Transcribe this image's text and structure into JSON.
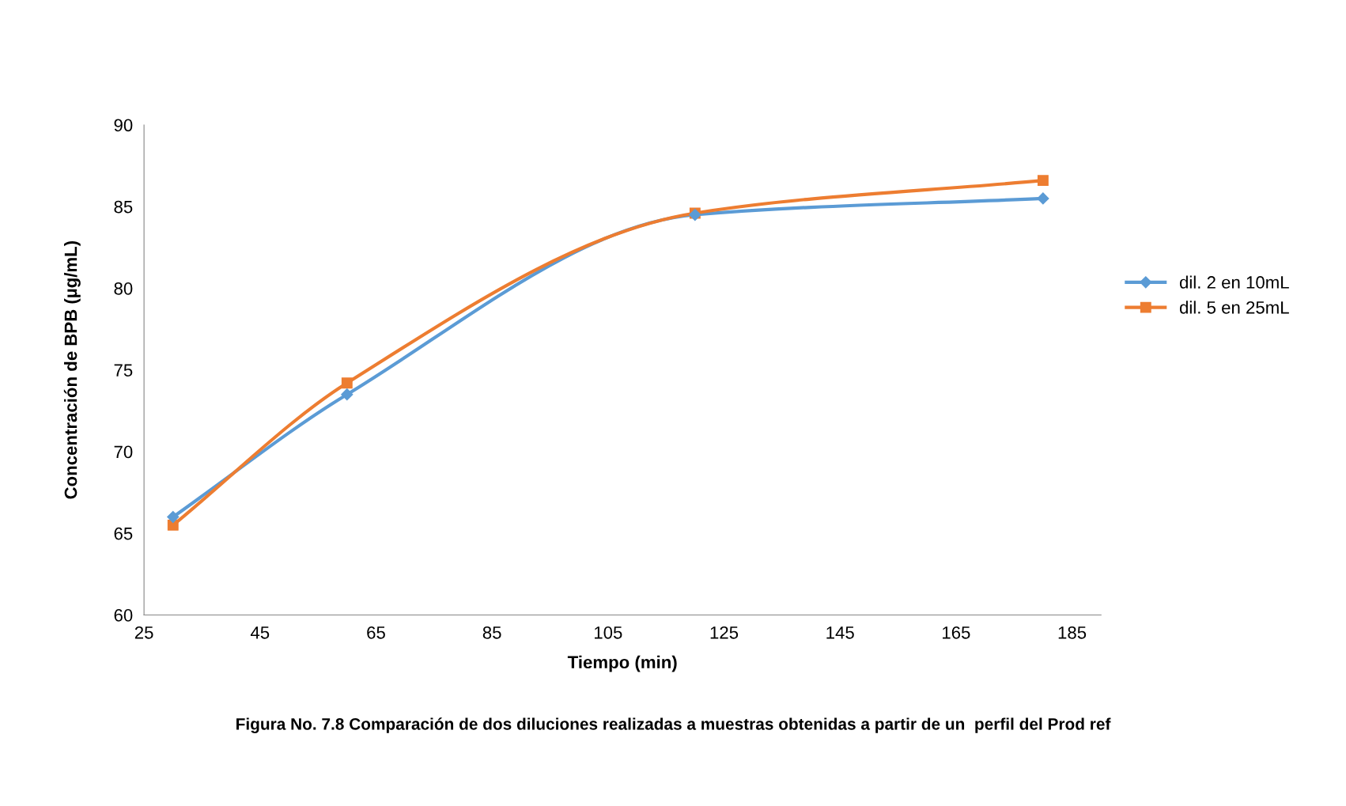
{
  "chart_data": {
    "type": "line",
    "xlabel": "Tiempo (min)",
    "ylabel": "Concentración de BPB (µg/mL)",
    "x": [
      30,
      60,
      120,
      180
    ],
    "series": [
      {
        "name": "dil. 2 en 10mL",
        "color": "#5b9bd5",
        "marker": "diamond",
        "values": [
          66.0,
          73.5,
          84.5,
          85.5
        ]
      },
      {
        "name": "dil. 5 en 25mL",
        "color": "#ed7d31",
        "marker": "square",
        "values": [
          65.5,
          74.2,
          84.6,
          86.6
        ]
      }
    ],
    "xlim": [
      25,
      190
    ],
    "xticks": [
      25,
      45,
      65,
      85,
      105,
      125,
      145,
      165,
      185
    ],
    "ylim": [
      60,
      90
    ],
    "yticks": [
      60,
      65,
      70,
      75,
      80,
      85,
      90
    ],
    "grid": false,
    "legend": "right",
    "line_style": "solid",
    "annotations": [
      "Figura No. 7.8 Comparación de dos diluciones realizadas a muestras obtenidas a partir de un  perfil del Prod ref"
    ]
  }
}
